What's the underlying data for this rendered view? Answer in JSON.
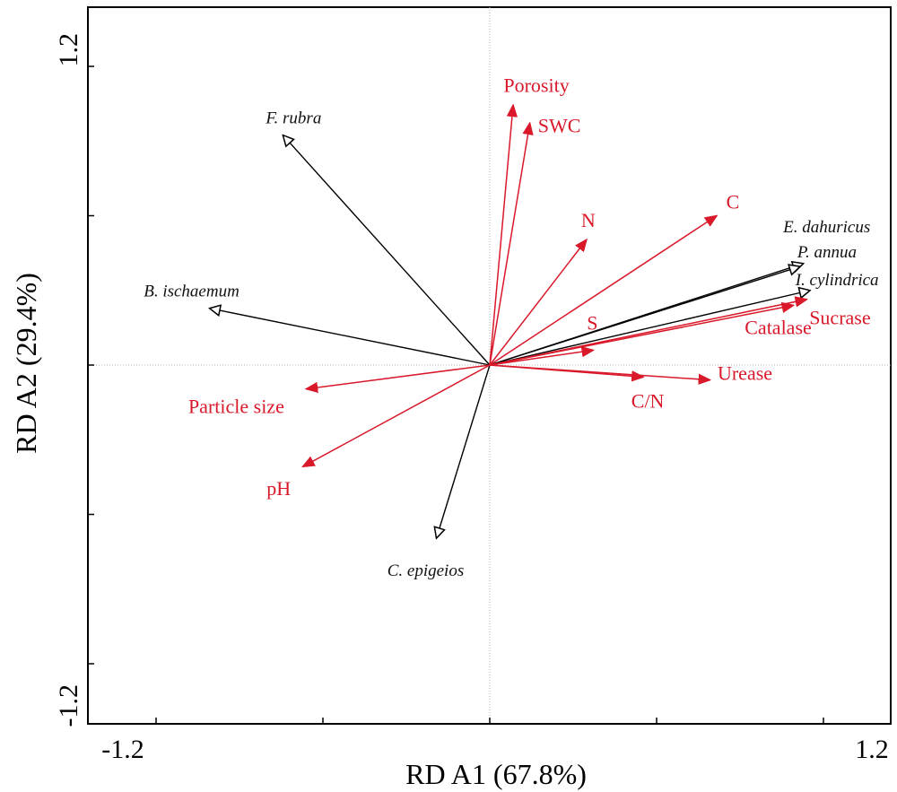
{
  "chart_data": {
    "type": "scatter",
    "subtype": "rda-biplot",
    "title": "",
    "xlabel": "RD A1 (67.8%)",
    "ylabel": "RD A2 (29.4%)",
    "xlim": [
      -1.2,
      1.2
    ],
    "ylim": [
      -1.2,
      1.2
    ],
    "tick_labels": {
      "x_min": "-1.2",
      "x_max": "1.2",
      "y_min": "-1.2",
      "y_max": "1.2"
    },
    "colors": {
      "species": "#000000",
      "environment": "#d9182a",
      "zero_lines": "#b0b0b0"
    },
    "species": [
      {
        "name": "F. rubra",
        "x": -0.62,
        "y": 0.77
      },
      {
        "name": "B. ischaemum",
        "x": -0.84,
        "y": 0.19
      },
      {
        "name": "C. epigeios",
        "x": -0.16,
        "y": -0.58
      },
      {
        "name": "E. dahuricus",
        "x": 0.94,
        "y": 0.34
      },
      {
        "name": "P. annua",
        "x": 0.93,
        "y": 0.33
      },
      {
        "name": "I. cylindrica",
        "x": 0.96,
        "y": 0.25
      }
    ],
    "environment": [
      {
        "name": "Porosity",
        "x": 0.07,
        "y": 0.87
      },
      {
        "name": "SWC",
        "x": 0.12,
        "y": 0.81
      },
      {
        "name": "N",
        "x": 0.29,
        "y": 0.42
      },
      {
        "name": "C",
        "x": 0.68,
        "y": 0.5
      },
      {
        "name": "S",
        "x": 0.31,
        "y": 0.05
      },
      {
        "name": "Catalase",
        "x": 0.91,
        "y": 0.2
      },
      {
        "name": "Sucrase",
        "x": 0.95,
        "y": 0.22
      },
      {
        "name": "C/N",
        "x": 0.46,
        "y": -0.04
      },
      {
        "name": "Urease",
        "x": 0.66,
        "y": -0.05
      },
      {
        "name": "Particle size",
        "x": -0.55,
        "y": -0.08
      },
      {
        "name": "pH",
        "x": -0.56,
        "y": -0.34
      }
    ]
  }
}
